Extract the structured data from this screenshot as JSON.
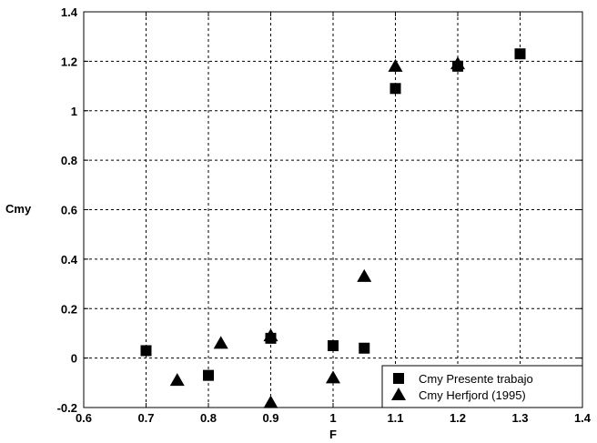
{
  "chart_data": {
    "type": "scatter",
    "title": "",
    "xlabel": "F",
    "ylabel": "Cmy",
    "xlim": [
      0.6,
      1.4
    ],
    "ylim": [
      -0.2,
      1.4
    ],
    "xticks": [
      "0.6",
      "0.7",
      "0.8",
      "0.9",
      "1",
      "1.1",
      "1.2",
      "1.3",
      "1.4"
    ],
    "yticks": [
      "-0.2",
      "0",
      "0.2",
      "0.4",
      "0.6",
      "0.8",
      "1",
      "1.2",
      "1.4"
    ],
    "grid": true,
    "legend_position": "bottom-right",
    "series": [
      {
        "name": "Cmy Presente trabajo",
        "marker": "square",
        "color": "#000000",
        "points": [
          {
            "x": 0.7,
            "y": 0.03
          },
          {
            "x": 0.8,
            "y": -0.07
          },
          {
            "x": 0.9,
            "y": 0.08
          },
          {
            "x": 1.0,
            "y": 0.05
          },
          {
            "x": 1.05,
            "y": 0.04
          },
          {
            "x": 1.1,
            "y": 1.09
          },
          {
            "x": 1.2,
            "y": 1.18
          },
          {
            "x": 1.3,
            "y": 1.23
          }
        ]
      },
      {
        "name": "Cmy Herfjord (1995)",
        "marker": "triangle",
        "color": "#000000",
        "points": [
          {
            "x": 0.75,
            "y": -0.09
          },
          {
            "x": 0.82,
            "y": 0.06
          },
          {
            "x": 0.9,
            "y": -0.18
          },
          {
            "x": 0.9,
            "y": 0.09
          },
          {
            "x": 1.0,
            "y": -0.08
          },
          {
            "x": 1.05,
            "y": 0.33
          },
          {
            "x": 1.1,
            "y": 1.18
          },
          {
            "x": 1.2,
            "y": 1.19
          }
        ]
      }
    ]
  }
}
